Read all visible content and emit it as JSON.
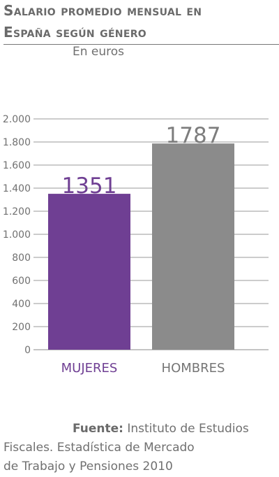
{
  "header": {
    "title_line1": "Salario promedio mensual en",
    "title_line2": "España según género",
    "subtitle": "En euros"
  },
  "source": {
    "prefix": "Fuente:",
    "line1": "Instituto de Estudios",
    "line2": "Fiscales. Estadística de Mercado",
    "line3": "de Trabajo y Pensiones 2010"
  },
  "chart_data": {
    "type": "bar",
    "categories": [
      "MUJERES",
      "HOMBRES"
    ],
    "values": [
      1351,
      1787
    ],
    "data_labels": [
      "1351",
      "1787"
    ],
    "ylim": [
      0,
      2000
    ],
    "yticks": [
      0,
      200,
      400,
      600,
      800,
      1000,
      1200,
      1400,
      1600,
      1800,
      2000
    ],
    "ytick_labels": [
      "0",
      "200",
      "400",
      "600",
      "800",
      "1.000",
      "1.200",
      "1.400",
      "1.600",
      "1.800",
      "2.000"
    ],
    "grid": true,
    "colors": [
      "#6f3f93",
      "#8b8b8b"
    ],
    "category_label_colors": [
      "#6f3f93",
      "#757575"
    ],
    "data_label_colors": [
      "#6f3f93",
      "#7d7d7d"
    ]
  }
}
